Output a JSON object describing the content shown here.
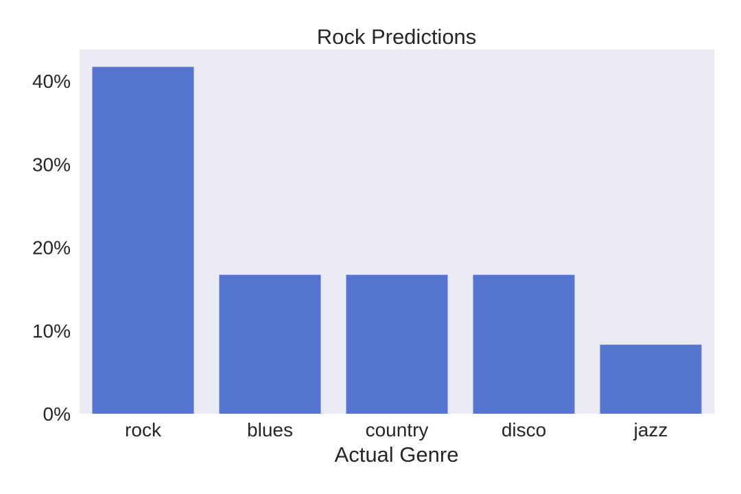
{
  "chart_data": {
    "type": "bar",
    "title": "Rock Predictions",
    "xlabel": "Actual Genre",
    "ylabel": "",
    "categories": [
      "rock",
      "blues",
      "country",
      "disco",
      "jazz"
    ],
    "values": [
      41.7,
      16.7,
      16.7,
      16.7,
      8.3
    ],
    "ylim": [
      0,
      43.8
    ],
    "yticks": [
      0,
      10,
      20,
      30,
      40
    ],
    "ytick_labels": [
      "0%",
      "10%",
      "20%",
      "30%",
      "40%"
    ],
    "grid": false,
    "legend": "none",
    "colors": {
      "bar": "#5574cf",
      "plot_background": "#eaeaf2",
      "text": "#262626"
    }
  }
}
